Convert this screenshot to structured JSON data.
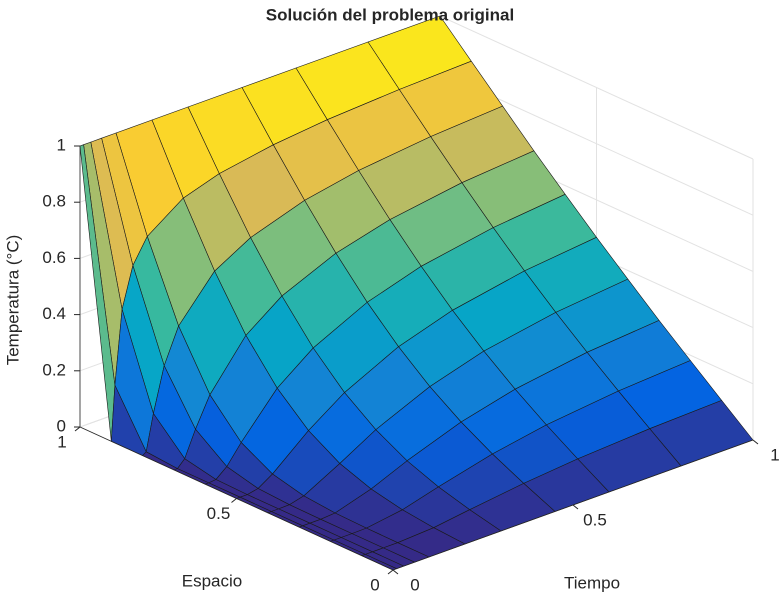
{
  "chart_data": {
    "type": "surface",
    "title": "Solución del problema original",
    "xlabel": "Tiempo",
    "ylabel": "Espacio",
    "zlabel": "Temperatura (°C)",
    "x": [
      0,
      0.01,
      0.03,
      0.06,
      0.1,
      0.2,
      0.3,
      0.45,
      0.6,
      0.8,
      1
    ],
    "y": [
      0,
      0.1,
      0.2,
      0.3,
      0.4,
      0.5,
      0.6,
      0.7,
      0.8,
      0.9,
      1
    ],
    "z": [
      [
        0,
        0,
        0,
        0,
        0,
        0,
        0,
        0,
        0,
        0,
        0
      ],
      [
        0,
        0,
        0,
        0,
        0,
        0.007,
        0.025,
        0.049,
        0.067,
        0.082,
        0.09
      ],
      [
        0,
        0,
        0,
        0,
        0.001,
        0.02,
        0.055,
        0.103,
        0.137,
        0.165,
        0.181
      ],
      [
        0,
        0,
        0,
        0,
        0.004,
        0.043,
        0.097,
        0.166,
        0.213,
        0.252,
        0.273
      ],
      [
        0,
        0,
        0,
        0.001,
        0.014,
        0.083,
        0.157,
        0.241,
        0.298,
        0.343,
        0.369
      ],
      [
        0,
        0,
        0,
        0.008,
        0.041,
        0.149,
        0.238,
        0.332,
        0.392,
        0.44,
        0.467
      ],
      [
        0,
        0,
        0.003,
        0.035,
        0.102,
        0.249,
        0.346,
        0.439,
        0.498,
        0.543,
        0.569
      ],
      [
        0,
        0,
        0.026,
        0.117,
        0.221,
        0.386,
        0.48,
        0.563,
        0.613,
        0.652,
        0.673
      ],
      [
        0,
        0.009,
        0.136,
        0.292,
        0.415,
        0.564,
        0.637,
        0.7,
        0.737,
        0.765,
        0.781
      ],
      [
        0,
        0.195,
        0.456,
        0.598,
        0.683,
        0.773,
        0.814,
        0.847,
        0.867,
        0.882,
        0.89
      ],
      [
        1,
        1,
        1,
        1,
        1,
        1,
        1,
        1,
        1,
        1,
        1
      ]
    ],
    "xlim": [
      0,
      1
    ],
    "ylim": [
      0,
      1
    ],
    "zlim": [
      0,
      1
    ],
    "xticks": [
      0,
      0.5,
      1
    ],
    "yticks": [
      0,
      0.5,
      1
    ],
    "zticks": [
      0,
      0.2,
      0.4,
      0.6,
      0.8,
      1
    ],
    "grid": true,
    "colormap": [
      "#352a87",
      "#0363e1",
      "#1485d4",
      "#06a7c6",
      "#38b99e",
      "#92bf73",
      "#d9ba56",
      "#fcce2e",
      "#f9fb0e"
    ]
  }
}
